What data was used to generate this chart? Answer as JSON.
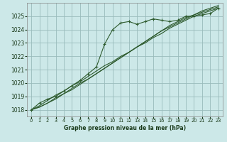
{
  "background_color": "#cce8e8",
  "grid_color": "#99bbbb",
  "line_color": "#2d5a2d",
  "xlabel": "Graphe pression niveau de la mer (hPa)",
  "ylim": [
    1017.5,
    1026.0
  ],
  "xlim": [
    -0.5,
    23.5
  ],
  "yticks": [
    1018,
    1019,
    1020,
    1021,
    1022,
    1023,
    1024,
    1025
  ],
  "xticks": [
    0,
    1,
    2,
    3,
    4,
    5,
    6,
    7,
    8,
    9,
    10,
    11,
    12,
    13,
    14,
    15,
    16,
    17,
    18,
    19,
    20,
    21,
    22,
    23
  ],
  "series": [
    [
      1018.0,
      1018.5,
      1018.8,
      1019.0,
      1019.4,
      1019.8,
      1020.2,
      1020.7,
      1021.2,
      1022.9,
      1024.0,
      1024.5,
      1024.6,
      1024.4,
      1024.6,
      1024.8,
      1024.7,
      1024.6,
      1024.7,
      1025.0,
      1025.0,
      1025.1,
      1025.2,
      1025.6
    ],
    [
      1018.0,
      1018.3,
      1018.7,
      1019.1,
      1019.4,
      1019.8,
      1020.1,
      1020.5,
      1020.9,
      1021.3,
      1021.6,
      1022.0,
      1022.3,
      1022.7,
      1023.0,
      1023.4,
      1023.7,
      1024.1,
      1024.4,
      1024.7,
      1025.0,
      1025.2,
      1025.4,
      1025.6
    ],
    [
      1018.0,
      1018.2,
      1018.5,
      1018.9,
      1019.2,
      1019.6,
      1020.0,
      1020.3,
      1020.7,
      1021.1,
      1021.5,
      1021.9,
      1022.3,
      1022.7,
      1023.1,
      1023.5,
      1023.9,
      1024.2,
      1024.5,
      1024.8,
      1025.1,
      1025.3,
      1025.5,
      1025.7
    ],
    [
      1018.0,
      1018.2,
      1018.5,
      1018.8,
      1019.2,
      1019.5,
      1019.9,
      1020.3,
      1020.7,
      1021.1,
      1021.5,
      1021.9,
      1022.3,
      1022.7,
      1023.1,
      1023.5,
      1023.9,
      1024.3,
      1024.6,
      1024.9,
      1025.1,
      1025.4,
      1025.6,
      1025.8
    ]
  ],
  "marker_series": 0
}
